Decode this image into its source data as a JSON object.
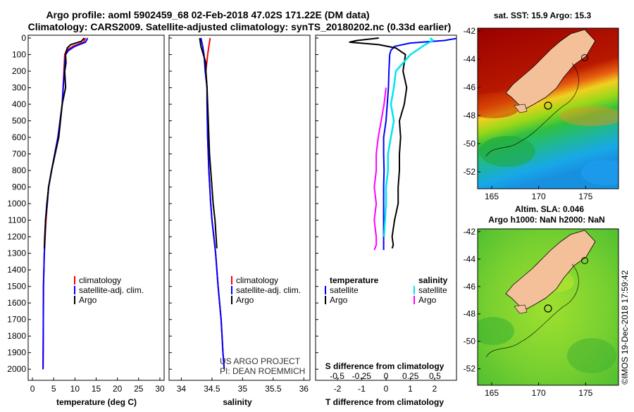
{
  "header": {
    "title_line1": "Argo profile: aoml 5902459_68 02-Feb-2018 47.02S 171.22E (DM data)",
    "title_line2": "Climatology: CARS2009. Satellite-adjusted climatology: synTS_20180202.nc (0.33d earlier)"
  },
  "colors": {
    "climatology": "#ff0000",
    "satellite": "#0000ff",
    "argo": "#000000",
    "salinity_satellite": "#00e5ee",
    "salinity_argo": "#ff00ff",
    "land": "#f4c09a"
  },
  "chart_data": [
    {
      "type": "line",
      "panel": "temperature",
      "xlabel": "temperature (deg C)",
      "xlim": [
        -1,
        31
      ],
      "xticks": [
        "0",
        "5",
        "10",
        "15",
        "20",
        "25",
        "30"
      ],
      "ylim": [
        2050,
        0
      ],
      "yticks": [
        "0",
        "100",
        "200",
        "300",
        "400",
        "500",
        "600",
        "700",
        "800",
        "900",
        "1000",
        "1100",
        "1200",
        "1300",
        "1400",
        "1500",
        "1600",
        "1700",
        "1800",
        "1900",
        "2000"
      ],
      "legend": [
        "climatology",
        "satellite-adj. clim.",
        "Argo"
      ],
      "series": [
        {
          "name": "climatology",
          "x": [
            12.5,
            12.0,
            9.5,
            8.0,
            7.6,
            7.4,
            7.0,
            6.0,
            4.5,
            3.8,
            3.5,
            3.2,
            2.8,
            2.6,
            2.55,
            2.5
          ],
          "y": [
            0,
            25,
            50,
            75,
            100,
            200,
            400,
            600,
            800,
            900,
            1000,
            1100,
            1300,
            1500,
            1800,
            2000
          ]
        },
        {
          "name": "satellite-adj. clim.",
          "x": [
            13.0,
            12.5,
            10.0,
            8.5,
            7.8,
            7.5,
            7.0,
            6.0,
            4.5,
            3.8,
            3.5,
            3.1,
            2.8,
            2.6,
            2.55,
            2.5
          ],
          "y": [
            0,
            25,
            50,
            75,
            100,
            200,
            400,
            600,
            800,
            900,
            1000,
            1100,
            1300,
            1500,
            1800,
            2000
          ]
        },
        {
          "name": "Argo",
          "x": [
            12.2,
            11.5,
            9.0,
            8.2,
            7.8,
            7.9,
            7.6,
            7.8,
            7.0,
            6.2,
            4.5,
            3.8,
            3.4,
            3.1,
            2.9,
            2.8
          ],
          "y": [
            0,
            20,
            40,
            60,
            100,
            150,
            200,
            300,
            400,
            600,
            800,
            900,
            1000,
            1100,
            1200,
            1270
          ]
        }
      ]
    },
    {
      "type": "line",
      "panel": "salinity",
      "xlabel": "salinity",
      "xlim": [
        33.8,
        36.1
      ],
      "xticks": [
        "34",
        "34.5",
        "35",
        "35.5",
        "36"
      ],
      "ylim": [
        2050,
        0
      ],
      "legend": [
        "climatology",
        "satellite-adj. clim.",
        "Argo"
      ],
      "annotations": [
        "US ARGO PROJECT",
        "PI: DEAN ROEMMICH"
      ],
      "series": [
        {
          "name": "climatology",
          "x": [
            34.47,
            34.45,
            34.43,
            34.4,
            34.42,
            34.42,
            34.43,
            34.45,
            34.48,
            34.5,
            34.53,
            34.56,
            34.6,
            34.65,
            34.68,
            34.7
          ],
          "y": [
            0,
            50,
            100,
            200,
            300,
            400,
            600,
            800,
            1000,
            1100,
            1200,
            1300,
            1500,
            1700,
            1900,
            2000
          ]
        },
        {
          "name": "satellite-adj. clim.",
          "x": [
            34.32,
            34.35,
            34.37,
            34.39,
            34.42,
            34.42,
            34.43,
            34.45,
            34.48,
            34.5,
            34.53,
            34.56,
            34.6,
            34.65,
            34.68,
            34.7
          ],
          "y": [
            0,
            50,
            100,
            200,
            300,
            400,
            600,
            800,
            1000,
            1100,
            1200,
            1300,
            1500,
            1700,
            1900,
            2000
          ]
        },
        {
          "name": "Argo",
          "x": [
            34.3,
            34.32,
            34.36,
            34.4,
            34.4,
            34.42,
            34.44,
            34.46,
            34.5,
            34.52,
            34.55,
            34.58
          ],
          "y": [
            0,
            50,
            100,
            150,
            200,
            300,
            500,
            700,
            900,
            1000,
            1100,
            1270
          ]
        }
      ]
    },
    {
      "type": "line",
      "panel": "difference",
      "xlabel": "T difference from climatology",
      "xlabel_top": "S difference from climatology",
      "xlim": [
        -2.9,
        2.9
      ],
      "xticks": [
        "-2",
        "-1",
        "0",
        "1",
        "2"
      ],
      "xticks_s": [
        "-0.5",
        "-0.25",
        "0",
        "0.25",
        "0.5"
      ],
      "ylim": [
        2050,
        0
      ],
      "legend_temperature": [
        "temperature",
        "satellite",
        "Argo"
      ],
      "legend_salinity": [
        "salinity",
        "satellite",
        "Argo"
      ],
      "series": [
        {
          "name": "T satellite",
          "x": [
            3.0,
            2.4,
            1.0,
            0.35,
            0.2,
            0.15,
            0.12,
            0.1,
            0.05,
            0.0,
            -0.1,
            -0.1,
            -0.08,
            -0.1,
            -0.1,
            -0.1
          ],
          "y": [
            0,
            15,
            30,
            50,
            75,
            100,
            200,
            300,
            400,
            500,
            600,
            700,
            800,
            900,
            1100,
            1280
          ]
        },
        {
          "name": "T Argo",
          "x": [
            -0.3,
            -1.2,
            -1.5,
            -0.3,
            0.4,
            0.8,
            0.7,
            0.85,
            0.75,
            0.55,
            0.6,
            0.55,
            0.55,
            0.5,
            0.5,
            0.35,
            0.25,
            0.3,
            0.25
          ],
          "y": [
            0,
            15,
            25,
            40,
            60,
            100,
            200,
            300,
            400,
            500,
            600,
            700,
            800,
            900,
            1000,
            1100,
            1200,
            1250,
            1270
          ]
        },
        {
          "name": "S satellite",
          "x": [
            0.45,
            0.48,
            0.4,
            0.25,
            0.1,
            0.08,
            0.05,
            0.08,
            0.05,
            0.02,
            0.02,
            0.0,
            0.0,
            -0.02
          ],
          "y": [
            0,
            15,
            40,
            100,
            200,
            300,
            400,
            500,
            600,
            700,
            800,
            900,
            1000,
            1200
          ]
        },
        {
          "name": "S Argo",
          "x": [
            0.0,
            -0.02,
            -0.05,
            -0.08,
            -0.1,
            -0.1,
            -0.12,
            -0.1,
            -0.12,
            -0.1,
            -0.1,
            -0.12
          ],
          "y": [
            300,
            400,
            500,
            600,
            700,
            800,
            900,
            1000,
            1100,
            1200,
            1250,
            1280
          ]
        }
      ]
    },
    {
      "type": "heatmap",
      "panel": "sst_map",
      "title": "sat. SST: 15.9 Argo: 15.3",
      "xticks": [
        "165",
        "170",
        "175"
      ],
      "yticks": [
        "-42",
        "-44",
        "-46",
        "-48",
        "-50",
        "-52"
      ],
      "xlim": [
        163.5,
        178.5
      ],
      "ylim": [
        -53.2,
        -41.8
      ],
      "argo_position": [
        171.22,
        -47.02
      ]
    },
    {
      "type": "heatmap",
      "panel": "sla_map",
      "title_line1": "Altim. SLA: 0.046",
      "title_line2": "Argo h1000: NaN h2000: NaN",
      "xticks": [
        "165",
        "170",
        "175"
      ],
      "yticks": [
        "-42",
        "-44",
        "-46",
        "-48",
        "-50",
        "-52"
      ],
      "xlim": [
        163.5,
        178.5
      ],
      "ylim": [
        -53.2,
        -41.8
      ],
      "credit": "©IMOS 19-Dec-2018 17:59:42"
    }
  ]
}
